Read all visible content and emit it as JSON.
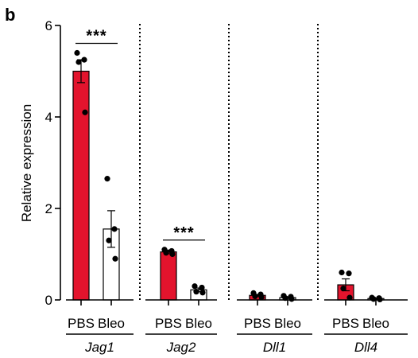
{
  "panel_label": "b",
  "colors": {
    "pbs_fill": "#e3142d",
    "bleo_fill": "#ffffff",
    "stroke": "#000000"
  },
  "chart_data": {
    "type": "bar",
    "title": "",
    "ylabel": "Relative expression",
    "xlabel": "",
    "ylim": [
      0,
      6
    ],
    "yticks": [
      0,
      2,
      4,
      6
    ],
    "grid": false,
    "conditions": [
      "PBS",
      "Bleo"
    ],
    "groups": [
      {
        "gene": "Jag1",
        "bars": [
          {
            "condition": "PBS",
            "mean": 5.0,
            "sem": 0.25,
            "points": [
              5.4,
              5.25,
              5.2,
              4.1
            ]
          },
          {
            "condition": "Bleo",
            "mean": 1.55,
            "sem": 0.4,
            "points": [
              2.65,
              1.55,
              1.3,
              0.9
            ]
          }
        ],
        "significance": "***"
      },
      {
        "gene": "Jag2",
        "bars": [
          {
            "condition": "PBS",
            "mean": 1.05,
            "sem": 0.04,
            "points": [
              1.1,
              1.07,
              1.03,
              1.0
            ]
          },
          {
            "condition": "Bleo",
            "mean": 0.22,
            "sem": 0.04,
            "points": [
              0.3,
              0.27,
              0.18,
              0.16
            ]
          }
        ],
        "significance": "***"
      },
      {
        "gene": "Dll1",
        "bars": [
          {
            "condition": "PBS",
            "mean": 0.1,
            "sem": 0.02,
            "points": [
              0.15,
              0.12,
              0.08,
              0.06
            ]
          },
          {
            "condition": "Bleo",
            "mean": 0.05,
            "sem": 0.02,
            "points": [
              0.09,
              0.07,
              0.04,
              0.02
            ]
          }
        ],
        "significance": ""
      },
      {
        "gene": "Dll4",
        "bars": [
          {
            "condition": "PBS",
            "mean": 0.33,
            "sem": 0.13,
            "points": [
              0.6,
              0.58,
              0.25,
              0.05
            ]
          },
          {
            "condition": "Bleo",
            "mean": 0.03,
            "sem": 0.01,
            "points": [
              0.05,
              0.04,
              0.02,
              0.01
            ]
          }
        ],
        "significance": ""
      }
    ]
  }
}
